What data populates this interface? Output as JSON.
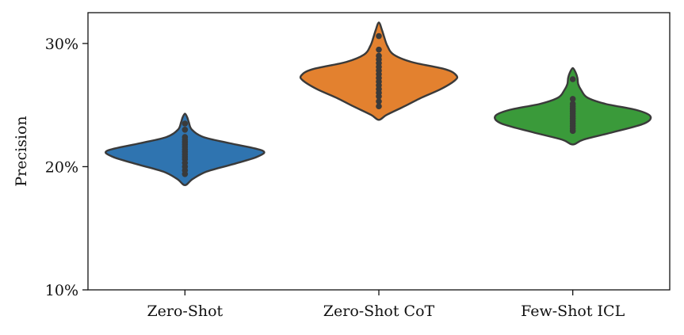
{
  "chart_data": {
    "type": "violin",
    "xlabel": "",
    "ylabel": "Precision",
    "ylim": [
      10,
      32.5
    ],
    "y_ticks": [
      {
        "value": 10,
        "label": "10%"
      },
      {
        "value": 20,
        "label": "20%"
      },
      {
        "value": 30,
        "label": "30%"
      }
    ],
    "categories": [
      "Zero-Shot",
      "Zero-Shot CoT",
      "Few-Shot ICL"
    ],
    "grid": false,
    "colors": [
      "#2f74b0",
      "#e3812f",
      "#3a9a3a"
    ],
    "series": [
      {
        "category": "Zero-Shot",
        "color": "#2f74b0",
        "profile": [
          [
            18.5,
            0.0
          ],
          [
            19.0,
            0.1
          ],
          [
            19.6,
            0.28
          ],
          [
            20.2,
            0.62
          ],
          [
            20.8,
            0.93
          ],
          [
            21.3,
            1.0
          ],
          [
            21.9,
            0.58
          ],
          [
            22.4,
            0.24
          ],
          [
            23.0,
            0.09
          ],
          [
            23.6,
            0.05
          ],
          [
            24.0,
            0.03
          ],
          [
            24.3,
            0.0
          ]
        ],
        "points": [
          19.4,
          19.7,
          20.0,
          20.3,
          20.6,
          20.8,
          21.0,
          21.2,
          21.4,
          21.6,
          21.8,
          22.0,
          22.2,
          22.4,
          23.0,
          23.5
        ]
      },
      {
        "category": "Zero-Shot CoT",
        "color": "#e3812f",
        "profile": [
          [
            23.8,
            0.0
          ],
          [
            24.2,
            0.1
          ],
          [
            24.9,
            0.33
          ],
          [
            25.6,
            0.55
          ],
          [
            26.3,
            0.8
          ],
          [
            27.0,
            0.98
          ],
          [
            27.4,
            1.0
          ],
          [
            27.9,
            0.86
          ],
          [
            28.5,
            0.42
          ],
          [
            29.1,
            0.19
          ],
          [
            29.8,
            0.11
          ],
          [
            30.5,
            0.07
          ],
          [
            31.1,
            0.04
          ],
          [
            31.7,
            0.0
          ]
        ],
        "points": [
          24.9,
          25.3,
          25.7,
          26.0,
          26.3,
          26.6,
          26.9,
          27.2,
          27.5,
          27.8,
          28.1,
          28.4,
          28.7,
          29.0,
          29.5,
          30.6
        ]
      },
      {
        "category": "Few-Shot ICL",
        "color": "#3a9a3a",
        "profile": [
          [
            21.8,
            0.0
          ],
          [
            22.2,
            0.14
          ],
          [
            22.8,
            0.52
          ],
          [
            23.5,
            0.92
          ],
          [
            24.1,
            1.0
          ],
          [
            24.6,
            0.82
          ],
          [
            25.1,
            0.42
          ],
          [
            25.6,
            0.19
          ],
          [
            26.2,
            0.11
          ],
          [
            26.7,
            0.07
          ],
          [
            27.2,
            0.06
          ],
          [
            27.6,
            0.04
          ],
          [
            28.0,
            0.0
          ]
        ],
        "points": [
          22.9,
          23.1,
          23.3,
          23.5,
          23.7,
          23.9,
          24.1,
          24.3,
          24.5,
          24.7,
          24.9,
          25.1,
          25.5,
          27.1
        ]
      }
    ]
  }
}
